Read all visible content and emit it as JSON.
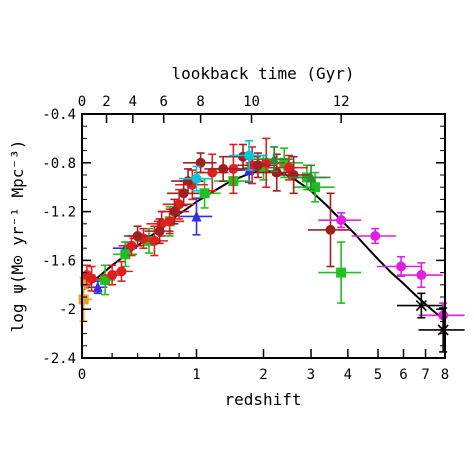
{
  "chart_data": {
    "type": "scatter",
    "xlabel": "redshift",
    "ylabel": "log ψ(M⊙ yr⁻¹ Mpc⁻³)",
    "top_axis_label": "lookback time (Gyr)",
    "x_scale": "log(1+z)",
    "xlim": [
      0,
      8
    ],
    "ylim": [
      -2.4,
      -0.4
    ],
    "x_ticks": [
      0,
      1,
      2,
      3,
      4,
      5,
      6,
      7,
      8
    ],
    "y_ticks": [
      -2.4,
      -2.0,
      -1.6,
      -1.2,
      -0.8,
      -0.4
    ],
    "y_tick_labels": [
      "-2.4",
      "-2",
      "-1.6",
      "-1.2",
      "-0.8",
      "-0.4"
    ],
    "top_ticks_gyr": [
      0,
      2,
      4,
      6,
      8,
      10,
      12
    ],
    "top_tick_redshifts": [
      0,
      0.16,
      0.36,
      0.64,
      1.05,
      1.79,
      3.8
    ],
    "model_curve": {
      "color": "#000000",
      "points": [
        [
          0,
          -1.85
        ],
        [
          0.1,
          -1.74
        ],
        [
          0.2,
          -1.64
        ],
        [
          0.3,
          -1.56
        ],
        [
          0.4,
          -1.48
        ],
        [
          0.5,
          -1.41
        ],
        [
          0.6,
          -1.35
        ],
        [
          0.7,
          -1.28
        ],
        [
          0.8,
          -1.22
        ],
        [
          0.9,
          -1.17
        ],
        [
          1.0,
          -1.12
        ],
        [
          1.2,
          -1.04
        ],
        [
          1.4,
          -0.97
        ],
        [
          1.6,
          -0.92
        ],
        [
          1.8,
          -0.88
        ],
        [
          2.0,
          -0.87
        ],
        [
          2.2,
          -0.87
        ],
        [
          2.4,
          -0.89
        ],
        [
          2.6,
          -0.93
        ],
        [
          2.8,
          -0.98
        ],
        [
          3.0,
          -1.03
        ],
        [
          3.4,
          -1.15
        ],
        [
          3.8,
          -1.27
        ],
        [
          4.2,
          -1.38
        ],
        [
          4.6,
          -1.49
        ],
        [
          5.0,
          -1.59
        ],
        [
          5.5,
          -1.7
        ],
        [
          6.0,
          -1.79
        ],
        [
          6.5,
          -1.88
        ],
        [
          7.0,
          -1.96
        ],
        [
          7.5,
          -2.03
        ],
        [
          8.0,
          -2.09
        ]
      ]
    },
    "series": [
      {
        "color": "#e8a020",
        "marker": "square",
        "points": [
          [
            0.01,
            -1.92,
            0.18
          ],
          [
            0.02,
            -1.78,
            0.05
          ]
        ]
      },
      {
        "color": "#3030e0",
        "marker": "triangle",
        "points": [
          [
            0.1,
            -1.82,
            0.05
          ],
          [
            0.3,
            -1.5,
            0.05
          ],
          [
            1.0,
            -1.24,
            0.15
          ],
          [
            1.75,
            -0.86,
            0.1
          ]
        ]
      },
      {
        "color": "#20c020",
        "marker": "square",
        "points": [
          [
            0.15,
            -1.76,
            0.12
          ],
          [
            0.3,
            -1.55,
            0.1
          ],
          [
            0.5,
            -1.44,
            0.1
          ],
          [
            0.7,
            -1.28,
            0.12
          ],
          [
            1.1,
            -1.05,
            0.12
          ],
          [
            1.5,
            -0.95,
            0.1
          ],
          [
            2.0,
            -0.84,
            0.1
          ],
          [
            2.4,
            -0.8,
            0.12
          ],
          [
            2.9,
            -0.92,
            0.1
          ],
          [
            3.1,
            -1.0,
            0.12
          ],
          [
            3.8,
            -1.7,
            0.25
          ]
        ]
      },
      {
        "color": "#e02020",
        "marker": "circle",
        "points": [
          [
            0.03,
            -1.72,
            0.08
          ],
          [
            0.06,
            -1.75,
            0.1
          ],
          [
            0.2,
            -1.72,
            0.08
          ],
          [
            0.27,
            -1.69,
            0.08
          ],
          [
            0.35,
            -1.48,
            0.08
          ],
          [
            0.45,
            -1.42,
            0.08
          ],
          [
            0.55,
            -1.44,
            0.12
          ],
          [
            0.62,
            -1.3,
            0.1
          ],
          [
            0.7,
            -1.28,
            0.1
          ],
          [
            0.8,
            -1.14,
            0.12
          ],
          [
            0.95,
            -0.98,
            0.12
          ],
          [
            1.2,
            -0.88,
            0.15
          ],
          [
            1.5,
            -0.85,
            0.2
          ],
          [
            1.8,
            -0.82,
            0.15
          ],
          [
            2.05,
            -0.8,
            0.2
          ],
          [
            2.5,
            -0.84,
            0.1
          ]
        ]
      },
      {
        "color": "#a02020",
        "marker": "circle",
        "points": [
          [
            0.4,
            -1.4,
            0.08
          ],
          [
            0.6,
            -1.36,
            0.1
          ],
          [
            0.75,
            -1.2,
            0.1
          ],
          [
            0.85,
            -1.05,
            0.1
          ],
          [
            0.9,
            -0.95,
            0.1
          ],
          [
            1.05,
            -0.8,
            0.08
          ],
          [
            1.35,
            -0.85,
            0.1
          ],
          [
            1.65,
            -0.75,
            0.1
          ],
          [
            1.9,
            -0.82,
            0.1
          ],
          [
            2.25,
            -0.88,
            0.15
          ],
          [
            2.6,
            -0.9,
            0.15
          ],
          [
            3.5,
            -1.35,
            0.3
          ]
        ]
      },
      {
        "color": "#00c8d8",
        "marker": "circle",
        "points": [
          [
            1.0,
            -0.93,
            0.1
          ],
          [
            1.75,
            -0.74,
            0.12
          ]
        ]
      },
      {
        "color": "#308830",
        "marker": "triangle",
        "points": [
          [
            2.2,
            -0.77,
            0.1
          ],
          [
            3.0,
            -0.92,
            0.1
          ]
        ]
      },
      {
        "color": "#e020e0",
        "marker": "circle",
        "points": [
          [
            3.8,
            -1.27,
            0.06
          ],
          [
            4.9,
            -1.4,
            0.06
          ],
          [
            5.9,
            -1.65,
            0.08
          ],
          [
            6.8,
            -1.72,
            0.1
          ],
          [
            7.9,
            -2.05,
            0.1
          ]
        ]
      },
      {
        "color": "#000000",
        "marker": "cross",
        "points": [
          [
            6.8,
            -1.97,
            0.1
          ],
          [
            7.9,
            -2.17,
            0.18
          ]
        ]
      }
    ]
  }
}
